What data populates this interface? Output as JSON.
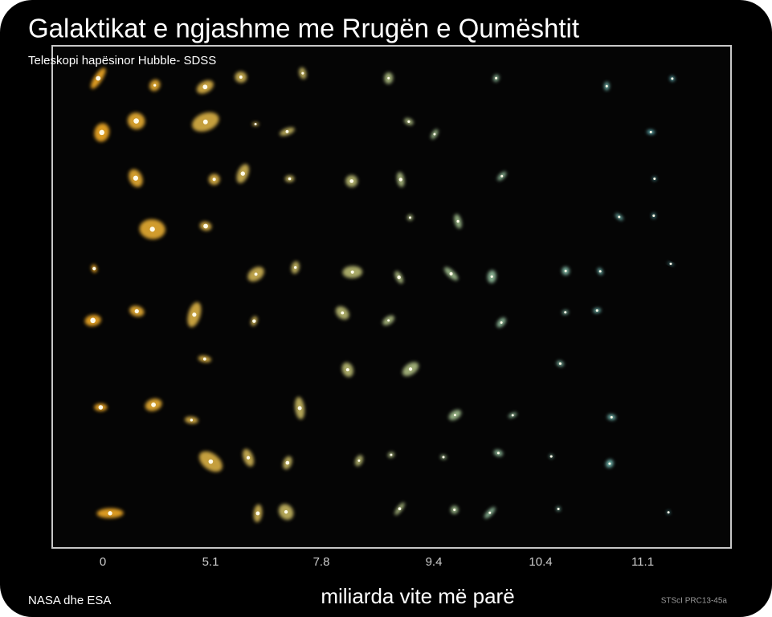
{
  "header": {
    "title": "Galaktikat e ngjashme me Rrugën e Qumështit",
    "subtitle": "Teleskopi hapësinor Hubble- SDSS"
  },
  "image": {
    "axis_labels": [
      "0",
      "5.1",
      "7.8",
      "9.4",
      "10.4",
      "11.1"
    ],
    "axis_title": "miliarda vite më parë",
    "image_credit": "STScI PRC13-45a"
  },
  "footer": {
    "credit": "NASA dhe ESA"
  }
}
